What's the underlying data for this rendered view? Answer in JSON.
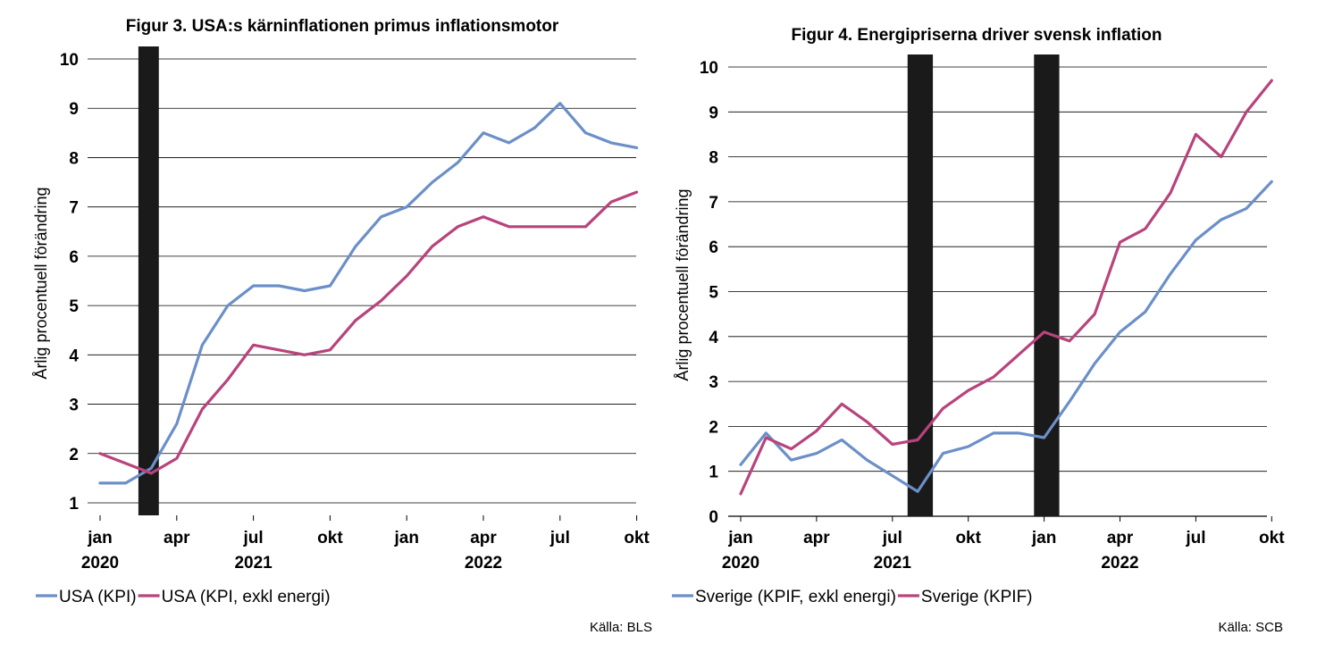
{
  "chart_data": [
    {
      "type": "line",
      "title": "Figur 3. USA:s kärninflationen primus inflationsmotor",
      "ylabel": "Årlig procentuell förändring",
      "ylim": [
        1,
        10
      ],
      "yticks": [
        1,
        2,
        3,
        4,
        5,
        6,
        7,
        8,
        9,
        10
      ],
      "grid": true,
      "month_ticks": [
        {
          "label": "jan",
          "year": "2020",
          "index": 0
        },
        {
          "label": "apr",
          "year": "",
          "index": 3
        },
        {
          "label": "jul",
          "year": "2021",
          "index": 6
        },
        {
          "label": "okt",
          "year": "",
          "index": 9
        },
        {
          "label": "jan",
          "year": "",
          "index": 12
        },
        {
          "label": "apr",
          "year": "2022",
          "index": 15
        },
        {
          "label": "jul",
          "year": "",
          "index": 18
        },
        {
          "label": "okt",
          "year": "",
          "index": 21
        }
      ],
      "series": [
        {
          "name": "USA (KPI)",
          "color": "#6b8fc8",
          "values": [
            1.4,
            1.4,
            1.7,
            2.6,
            4.2,
            5.0,
            5.4,
            5.4,
            5.3,
            5.4,
            6.2,
            6.8,
            7.0,
            7.5,
            7.9,
            8.5,
            8.3,
            8.6,
            9.1,
            8.5,
            8.3,
            8.2
          ]
        },
        {
          "name": "USA (KPI, exkl energi)",
          "color": "#b8437d",
          "values": [
            2.0,
            1.8,
            1.6,
            1.9,
            2.9,
            3.5,
            4.2,
            4.1,
            4.0,
            4.1,
            4.7,
            5.1,
            5.6,
            6.2,
            6.6,
            6.8,
            6.6,
            6.6,
            6.6,
            6.6,
            7.1,
            7.3
          ]
        }
      ],
      "shaded": [
        {
          "from": 1.5,
          "to": 2.3
        }
      ],
      "legend": "bottom",
      "source": "Källa: BLS"
    },
    {
      "type": "line",
      "title": "Figur 4. Energipriserna driver svensk inflation",
      "ylabel": "Årlig procentuell förändring",
      "ylim": [
        0,
        10
      ],
      "yticks": [
        0,
        1,
        2,
        3,
        4,
        5,
        6,
        7,
        8,
        9,
        10
      ],
      "grid": true,
      "month_ticks": [
        {
          "label": "jan",
          "year": "2020",
          "index": 0
        },
        {
          "label": "apr",
          "year": "",
          "index": 3
        },
        {
          "label": "jul",
          "year": "2021",
          "index": 6
        },
        {
          "label": "okt",
          "year": "",
          "index": 9
        },
        {
          "label": "jan",
          "year": "",
          "index": 12
        },
        {
          "label": "apr",
          "year": "2022",
          "index": 15
        },
        {
          "label": "jul",
          "year": "",
          "index": 18
        },
        {
          "label": "okt",
          "year": "",
          "index": 21
        }
      ],
      "series": [
        {
          "name": "Sverige (KPIF, exkl energi)",
          "color": "#6b8fc8",
          "values": [
            1.15,
            1.85,
            1.25,
            1.4,
            1.7,
            1.25,
            0.9,
            0.55,
            1.4,
            1.55,
            1.85,
            1.85,
            1.75,
            2.55,
            3.4,
            4.1,
            4.55,
            5.4,
            6.15,
            6.6,
            6.85,
            7.45
          ]
        },
        {
          "name": "Sverige (KPIF)",
          "color": "#b8437d",
          "values": [
            0.5,
            1.75,
            1.5,
            1.9,
            2.5,
            2.1,
            1.6,
            1.7,
            2.4,
            2.8,
            3.1,
            3.6,
            4.1,
            3.9,
            4.5,
            6.1,
            6.4,
            7.2,
            8.5,
            8.0,
            9.0,
            9.7
          ]
        }
      ],
      "shaded": [
        {
          "from": 6.6,
          "to": 7.6
        },
        {
          "from": 11.6,
          "to": 12.6
        }
      ],
      "legend": "bottom",
      "source": "Källa: SCB"
    }
  ]
}
